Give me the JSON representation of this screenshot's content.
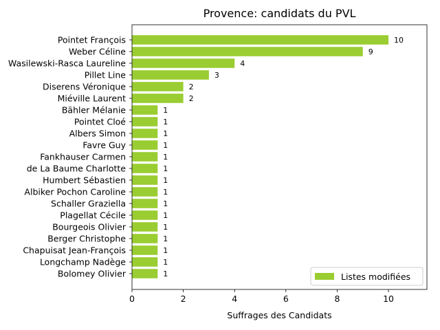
{
  "chart_data": {
    "type": "bar",
    "orientation": "horizontal",
    "title": "Provence: candidats du PVL",
    "xlabel": "Suffrages des Candidats",
    "ylabel": "",
    "xlim": [
      0,
      11.5
    ],
    "xticks": [
      0,
      2,
      4,
      6,
      8,
      10
    ],
    "grid": false,
    "legend_position": "bottom-right",
    "categories": [
      "Pointet François",
      "Weber Céline",
      "Wasilewski-Rasca Laureline",
      "Pillet Line",
      "Diserens Véronique",
      "Miéville Laurent",
      "Bähler Mélanie",
      "Pointet Cloé",
      "Albers Simon",
      "Favre Guy",
      "Fankhauser Carmen",
      "de La Baume Charlotte",
      "Humbert Sébastien",
      "Albiker Pochon Caroline",
      "Schaller Graziella",
      "Plagellat Cécile",
      "Bourgeois Olivier",
      "Berger Christophe",
      "Chapuisat Jean-François",
      "Longchamp Nadège",
      "Bolomey Olivier"
    ],
    "series": [
      {
        "name": "Listes modifiées",
        "color": "#9acd32",
        "values": [
          10,
          9,
          4,
          3,
          2,
          2,
          1,
          1,
          1,
          1,
          1,
          1,
          1,
          1,
          1,
          1,
          1,
          1,
          1,
          1,
          1
        ]
      }
    ]
  }
}
